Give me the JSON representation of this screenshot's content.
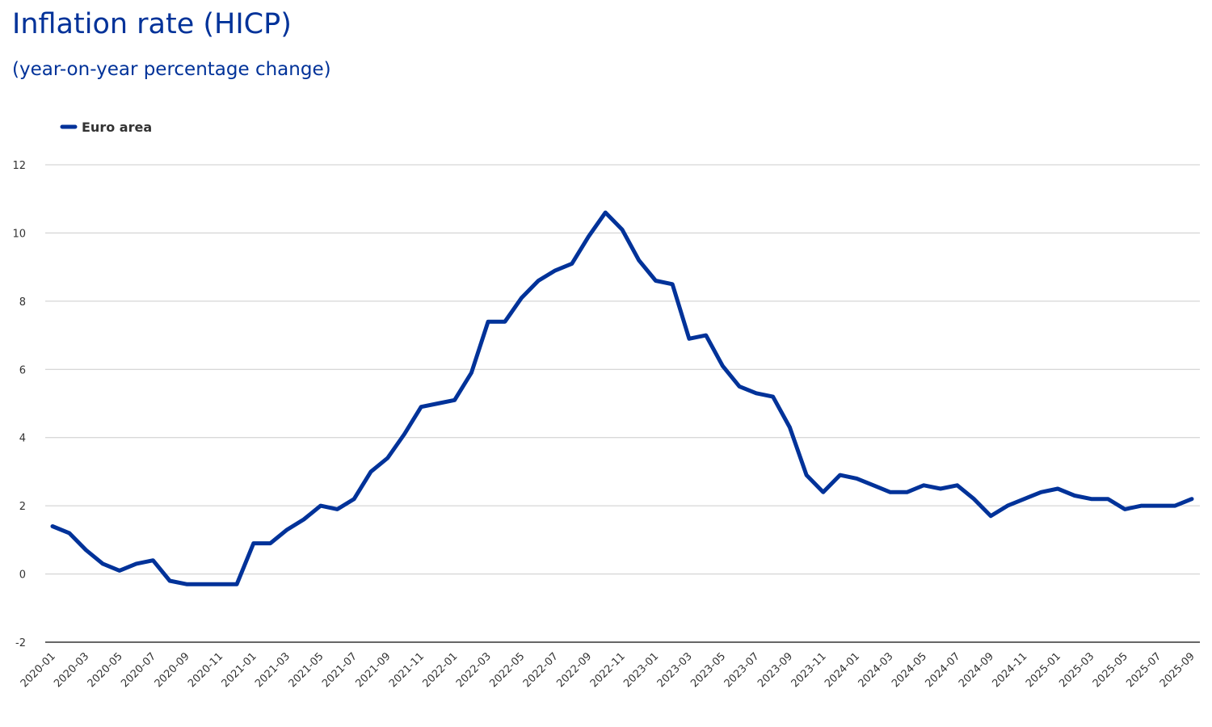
{
  "chart_data": {
    "type": "line",
    "title": "Inflation rate (HICP)",
    "subtitle": "(year-on-year percentage change)",
    "xlabel": "",
    "ylabel": "",
    "ylim": [
      -2,
      12
    ],
    "yticks": [
      "-2",
      "0",
      "2",
      "4",
      "6",
      "8",
      "10",
      "12"
    ],
    "grid": true,
    "legend_position": "top-left",
    "x_start": "2020-01",
    "x_tick_every": 2,
    "series": [
      {
        "name": "Euro area",
        "color": "#003299",
        "values": [
          1.4,
          1.2,
          0.7,
          0.3,
          0.1,
          0.3,
          0.4,
          -0.2,
          -0.3,
          -0.3,
          -0.3,
          -0.3,
          0.9,
          0.9,
          1.3,
          1.6,
          2.0,
          1.9,
          2.2,
          3.0,
          3.4,
          4.1,
          4.9,
          5.0,
          5.1,
          5.9,
          7.4,
          7.4,
          8.1,
          8.6,
          8.9,
          9.1,
          9.9,
          10.6,
          10.1,
          9.2,
          8.6,
          8.5,
          6.9,
          7.0,
          6.1,
          5.5,
          5.3,
          5.2,
          4.3,
          2.9,
          2.4,
          2.9,
          2.8,
          2.6,
          2.4,
          2.4,
          2.6,
          2.5,
          2.6,
          2.2,
          1.7,
          2.0,
          2.2,
          2.4,
          2.5,
          2.3,
          2.2,
          2.2,
          1.9,
          2.0,
          2.0,
          2.0,
          2.2
        ]
      }
    ]
  }
}
